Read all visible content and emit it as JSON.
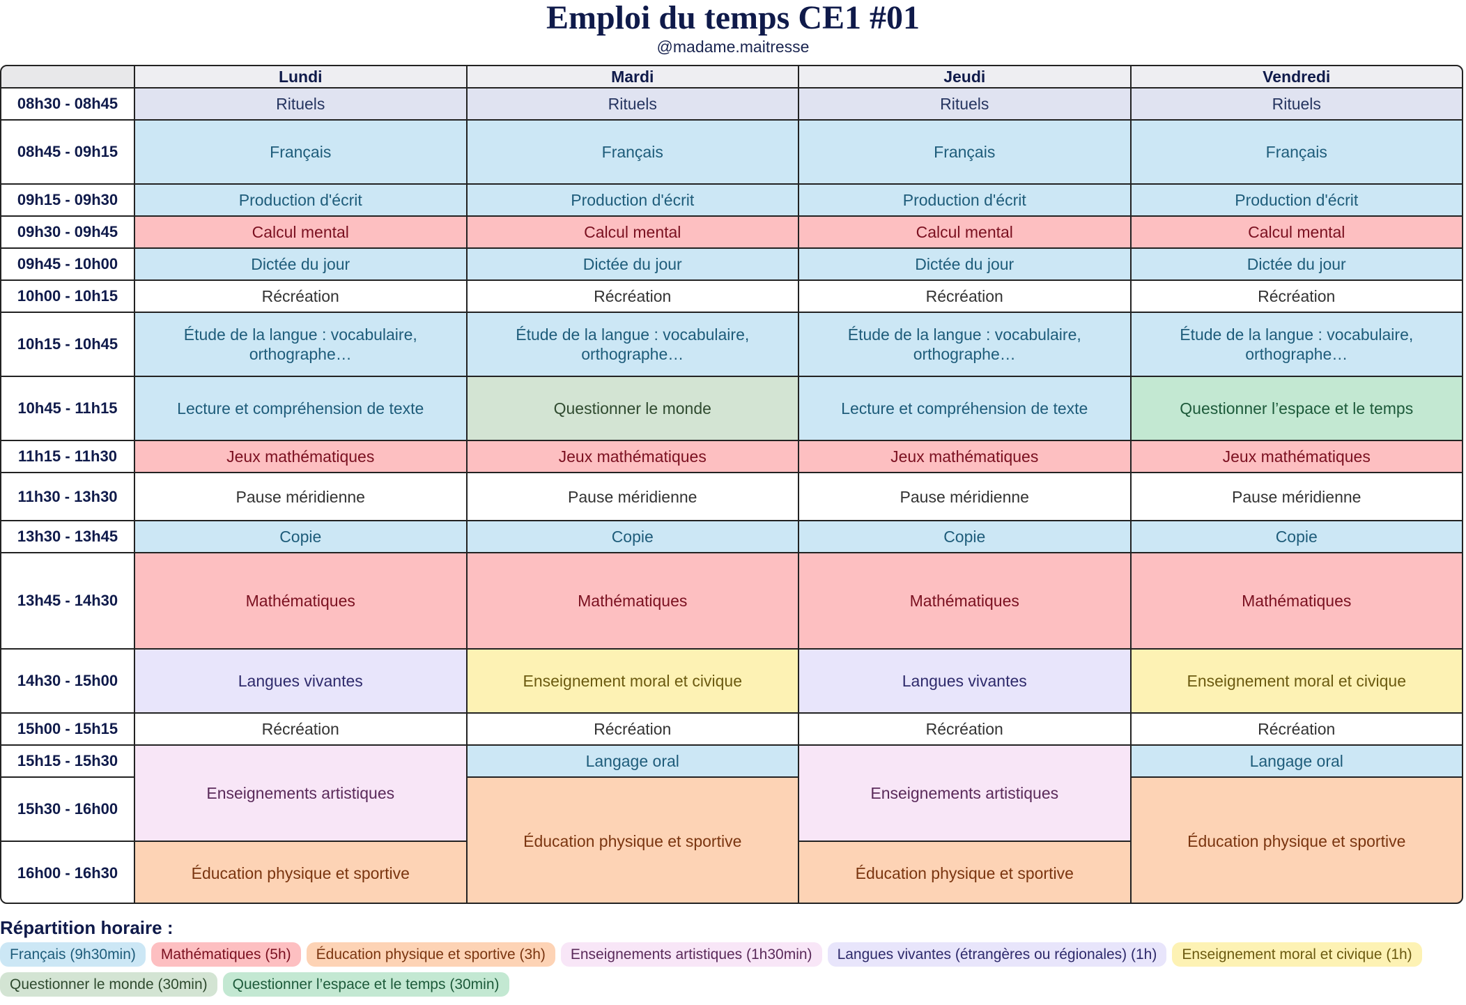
{
  "header": {
    "title": "Emploi du temps CE1 #01",
    "subtitle": "@madame.maitresse"
  },
  "table": {
    "days": [
      "Lundi",
      "Mardi",
      "Jeudi",
      "Vendredi"
    ],
    "times": [
      "08h30 - 08h45",
      "08h45 - 09h15",
      "09h15 - 09h30",
      "09h30 - 09h45",
      "09h45 - 10h00",
      "10h00 - 10h15",
      "10h15 - 10h45",
      "10h45 - 11h15",
      "11h15 - 11h30",
      "11h30 - 13h30",
      "13h30 - 13h45",
      "13h45 - 14h30",
      "14h30 - 15h00",
      "15h00 - 15h15",
      "15h15 - 15h30",
      "15h30 - 16h00",
      "16h00 - 16h30"
    ],
    "columns": [
      [
        {
          "text": "Rituels",
          "bg": "#e0e3f1",
          "fg": "#263560"
        },
        {
          "text": "Français",
          "bg": "#cce7f5",
          "fg": "#1e5c7a"
        },
        {
          "text": "Production d'écrit",
          "bg": "#cce7f5",
          "fg": "#1e5c7a"
        },
        {
          "text": "Calcul mental",
          "bg": "#fdbfc1",
          "fg": "#7a1020"
        },
        {
          "text": "Dictée du jour",
          "bg": "#cce7f5",
          "fg": "#1e5c7a"
        },
        {
          "text": "Récréation",
          "bg": "#ffffff",
          "fg": "#333333"
        },
        {
          "text": "Étude de la langue : vocabulaire, orthographe…",
          "bg": "#cce7f5",
          "fg": "#1e5c7a"
        },
        {
          "text": "Lecture et compréhension de texte",
          "bg": "#cce7f5",
          "fg": "#1e5c7a"
        },
        {
          "text": "Jeux mathématiques",
          "bg": "#fdbfc1",
          "fg": "#7a1020"
        },
        {
          "text": "Pause méridienne",
          "bg": "#ffffff",
          "fg": "#333333"
        },
        {
          "text": "Copie",
          "bg": "#cce7f5",
          "fg": "#1e5c7a"
        },
        {
          "text": "Mathématiques",
          "bg": "#fdbfc1",
          "fg": "#7a1020"
        },
        {
          "text": "Langues vivantes",
          "bg": "#e8e5fb",
          "fg": "#2e2a6b"
        },
        {
          "text": "Récréation",
          "bg": "#ffffff",
          "fg": "#333333"
        },
        {
          "text": "Enseignements artistiques",
          "bg": "#f8e6f7",
          "fg": "#5a2a5a",
          "rows": 2
        },
        {
          "text": "Éducation physique et sportive",
          "bg": "#fdd3b5",
          "fg": "#7a3510"
        }
      ],
      [
        {
          "text": "Rituels",
          "bg": "#e0e3f1",
          "fg": "#263560"
        },
        {
          "text": "Français",
          "bg": "#cce7f5",
          "fg": "#1e5c7a"
        },
        {
          "text": "Production d'écrit",
          "bg": "#cce7f5",
          "fg": "#1e5c7a"
        },
        {
          "text": "Calcul mental",
          "bg": "#fdbfc1",
          "fg": "#7a1020"
        },
        {
          "text": "Dictée du jour",
          "bg": "#cce7f5",
          "fg": "#1e5c7a"
        },
        {
          "text": "Récréation",
          "bg": "#ffffff",
          "fg": "#333333"
        },
        {
          "text": "Étude de la langue : vocabulaire, orthographe…",
          "bg": "#cce7f5",
          "fg": "#1e5c7a"
        },
        {
          "text": "Questionner le monde",
          "bg": "#d3e4d3",
          "fg": "#2f4a2f"
        },
        {
          "text": "Jeux mathématiques",
          "bg": "#fdbfc1",
          "fg": "#7a1020"
        },
        {
          "text": "Pause méridienne",
          "bg": "#ffffff",
          "fg": "#333333"
        },
        {
          "text": "Copie",
          "bg": "#cce7f5",
          "fg": "#1e5c7a"
        },
        {
          "text": "Mathématiques",
          "bg": "#fdbfc1",
          "fg": "#7a1020"
        },
        {
          "text": "Enseignement moral et civique",
          "bg": "#fdf2b4",
          "fg": "#6b5a10"
        },
        {
          "text": "Récréation",
          "bg": "#ffffff",
          "fg": "#333333"
        },
        {
          "text": "Langage oral",
          "bg": "#cce7f5",
          "fg": "#1e5c7a"
        },
        {
          "text": "Éducation physique et sportive",
          "bg": "#fdd3b5",
          "fg": "#7a3510",
          "rows": 2
        }
      ],
      [
        {
          "text": "Rituels",
          "bg": "#e0e3f1",
          "fg": "#263560"
        },
        {
          "text": "Français",
          "bg": "#cce7f5",
          "fg": "#1e5c7a"
        },
        {
          "text": "Production d'écrit",
          "bg": "#cce7f5",
          "fg": "#1e5c7a"
        },
        {
          "text": "Calcul mental",
          "bg": "#fdbfc1",
          "fg": "#7a1020"
        },
        {
          "text": "Dictée du jour",
          "bg": "#cce7f5",
          "fg": "#1e5c7a"
        },
        {
          "text": "Récréation",
          "bg": "#ffffff",
          "fg": "#333333"
        },
        {
          "text": "Étude de la langue : vocabulaire, orthographe…",
          "bg": "#cce7f5",
          "fg": "#1e5c7a"
        },
        {
          "text": "Lecture et compréhension de texte",
          "bg": "#cce7f5",
          "fg": "#1e5c7a"
        },
        {
          "text": "Jeux mathématiques",
          "bg": "#fdbfc1",
          "fg": "#7a1020"
        },
        {
          "text": "Pause méridienne",
          "bg": "#ffffff",
          "fg": "#333333"
        },
        {
          "text": "Copie",
          "bg": "#cce7f5",
          "fg": "#1e5c7a"
        },
        {
          "text": "Mathématiques",
          "bg": "#fdbfc1",
          "fg": "#7a1020"
        },
        {
          "text": "Langues vivantes",
          "bg": "#e8e5fb",
          "fg": "#2e2a6b"
        },
        {
          "text": "Récréation",
          "bg": "#ffffff",
          "fg": "#333333"
        },
        {
          "text": "Enseignements artistiques",
          "bg": "#f8e6f7",
          "fg": "#5a2a5a",
          "rows": 2
        },
        {
          "text": "Éducation physique et sportive",
          "bg": "#fdd3b5",
          "fg": "#7a3510"
        }
      ],
      [
        {
          "text": "Rituels",
          "bg": "#e0e3f1",
          "fg": "#263560"
        },
        {
          "text": "Français",
          "bg": "#cce7f5",
          "fg": "#1e5c7a"
        },
        {
          "text": "Production d'écrit",
          "bg": "#cce7f5",
          "fg": "#1e5c7a"
        },
        {
          "text": "Calcul mental",
          "bg": "#fdbfc1",
          "fg": "#7a1020"
        },
        {
          "text": "Dictée du jour",
          "bg": "#cce7f5",
          "fg": "#1e5c7a"
        },
        {
          "text": "Récréation",
          "bg": "#ffffff",
          "fg": "#333333"
        },
        {
          "text": "Étude de la langue : vocabulaire, orthographe…",
          "bg": "#cce7f5",
          "fg": "#1e5c7a"
        },
        {
          "text": "Questionner l’espace et le temps",
          "bg": "#c3e8d2",
          "fg": "#1d5a3a"
        },
        {
          "text": "Jeux mathématiques",
          "bg": "#fdbfc1",
          "fg": "#7a1020"
        },
        {
          "text": "Pause méridienne",
          "bg": "#ffffff",
          "fg": "#333333"
        },
        {
          "text": "Copie",
          "bg": "#cce7f5",
          "fg": "#1e5c7a"
        },
        {
          "text": "Mathématiques",
          "bg": "#fdbfc1",
          "fg": "#7a1020"
        },
        {
          "text": "Enseignement moral et civique",
          "bg": "#fdf2b4",
          "fg": "#6b5a10"
        },
        {
          "text": "Récréation",
          "bg": "#ffffff",
          "fg": "#333333"
        },
        {
          "text": "Langage oral",
          "bg": "#cce7f5",
          "fg": "#1e5c7a"
        },
        {
          "text": "Éducation physique et sportive",
          "bg": "#fdd3b5",
          "fg": "#7a3510",
          "rows": 2
        }
      ]
    ]
  },
  "legend": {
    "title": "Répartition horaire :",
    "items": [
      {
        "text": "Français (9h30min)",
        "bg": "#cce7f5",
        "fg": "#1e5c7a"
      },
      {
        "text": "Mathématiques (5h)",
        "bg": "#fdbfc1",
        "fg": "#7a1020"
      },
      {
        "text": "Éducation physique et sportive (3h)",
        "bg": "#fdd3b5",
        "fg": "#7a3510"
      },
      {
        "text": "Enseignements artistiques (1h30min)",
        "bg": "#f8e6f7",
        "fg": "#5a2a5a"
      },
      {
        "text": "Langues vivantes (étrangères ou régionales) (1h)",
        "bg": "#e8e5fb",
        "fg": "#2e2a6b"
      },
      {
        "text": "Enseignement moral et civique (1h)",
        "bg": "#fdf2b4",
        "fg": "#6b5a10"
      },
      {
        "text": "Questionner le monde (30min)",
        "bg": "#d3e4d3",
        "fg": "#2f4a2f"
      },
      {
        "text": "Questionner l’espace et le temps (30min)",
        "bg": "#c3e8d2",
        "fg": "#1d5a3a"
      }
    ]
  }
}
